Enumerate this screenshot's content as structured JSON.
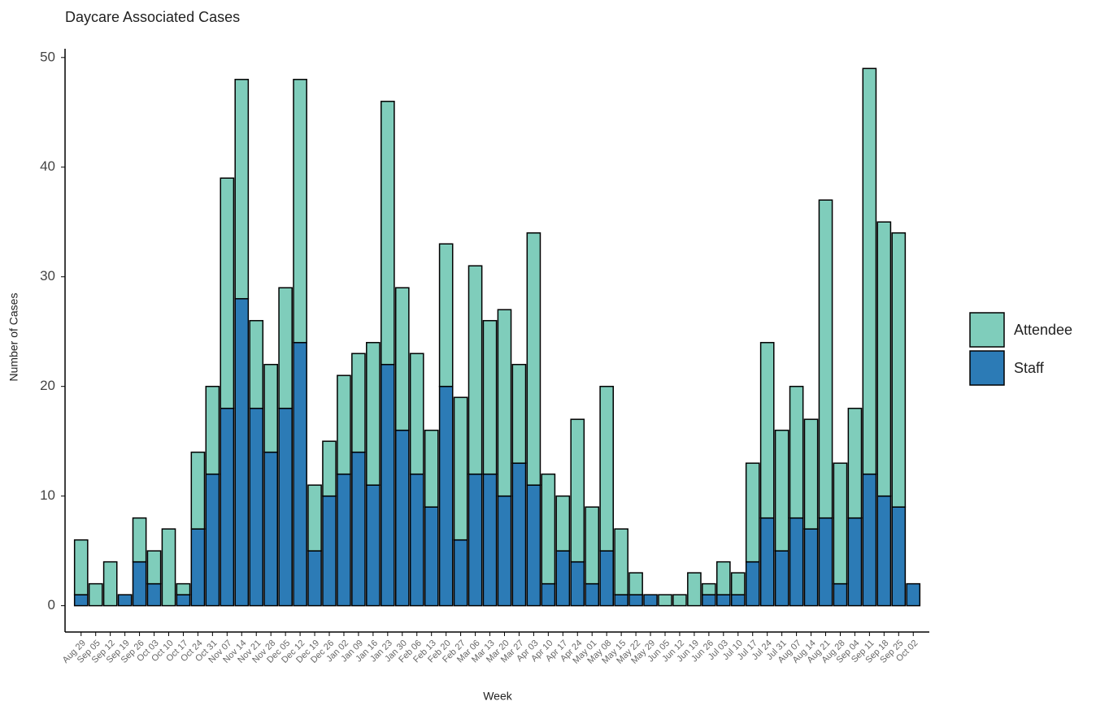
{
  "chart_data": {
    "type": "stacked_bar",
    "title": "Daycare Associated Cases",
    "x_label": "Week",
    "y_label": "Number of Cases",
    "categories": [
      "Aug 29",
      "Sep 05",
      "Sep 12",
      "Sep 19",
      "Sep 26",
      "Oct 03",
      "Oct 10",
      "Oct 17",
      "Oct 24",
      "Oct 31",
      "Nov 07",
      "Nov 14",
      "Nov 21",
      "Nov 28",
      "Dec 05",
      "Dec 12",
      "Dec 19",
      "Dec 26",
      "Jan 02",
      "Jan 09",
      "Jan 16",
      "Jan 23",
      "Jan 30",
      "Feb 06",
      "Feb 13",
      "Feb 20",
      "Feb 27",
      "Mar 06",
      "Mar 13",
      "Mar 20",
      "Mar 27",
      "Apr 03",
      "Apr 10",
      "Apr 17",
      "Apr 24",
      "May 01",
      "May 08",
      "May 15",
      "May 22",
      "May 29",
      "Jun 05",
      "Jun 12",
      "Jun 19",
      "Jun 26",
      "Jul 03",
      "Jul 10",
      "Jul 17",
      "Jul 24",
      "Jul 31",
      "Aug 07",
      "Aug 14",
      "Aug 21",
      "Aug 28",
      "Sep 04",
      "Sep 11",
      "Sep 18",
      "Sep 25",
      "Oct 02"
    ],
    "series": [
      {
        "name": "Staff",
        "color": "#2c7bb6",
        "values": [
          1,
          0,
          0,
          1,
          4,
          2,
          0,
          1,
          7,
          12,
          18,
          28,
          18,
          14,
          18,
          24,
          5,
          10,
          12,
          14,
          11,
          22,
          16,
          12,
          9,
          20,
          6,
          12,
          12,
          10,
          13,
          11,
          2,
          5,
          4,
          2,
          5,
          1,
          1,
          1,
          0,
          0,
          0,
          1,
          1,
          1,
          4,
          8,
          5,
          8,
          7,
          8,
          2,
          8,
          12,
          10,
          9,
          2
        ]
      },
      {
        "name": "Attendee",
        "color": "#7fcdbb",
        "values": [
          5,
          2,
          4,
          0,
          4,
          3,
          7,
          1,
          7,
          8,
          21,
          20,
          8,
          8,
          11,
          24,
          6,
          5,
          9,
          9,
          13,
          24,
          13,
          11,
          7,
          13,
          13,
          19,
          14,
          17,
          9,
          23,
          10,
          5,
          13,
          7,
          15,
          6,
          2,
          0,
          1,
          1,
          3,
          1,
          3,
          2,
          9,
          16,
          11,
          12,
          10,
          29,
          11,
          10,
          37,
          25,
          25,
          0
        ]
      }
    ],
    "ylim": [
      -2.4,
      50.8
    ],
    "yticks": [
      0,
      10,
      20,
      30,
      40,
      50
    ],
    "grid": false
  }
}
